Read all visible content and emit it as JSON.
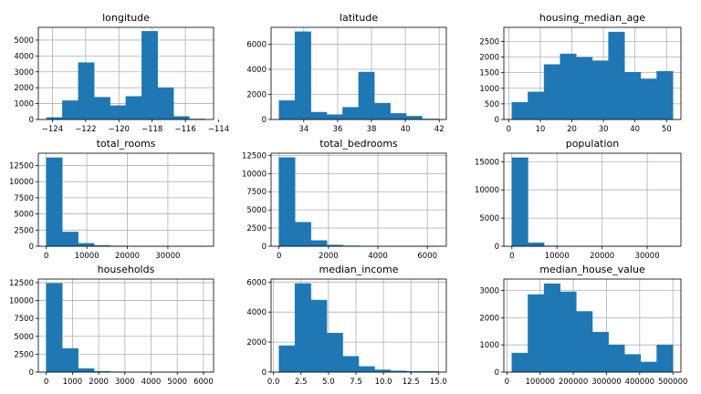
{
  "colors": {
    "bar": "#1f77b4",
    "grid": "#b0b0b0",
    "axis": "#000000"
  },
  "chart_data": [
    {
      "type": "bar",
      "title": "longitude",
      "grid": true,
      "bin_edges": [
        -124.35,
        -123.4,
        -122.44,
        -121.49,
        -120.53,
        -119.58,
        -118.62,
        -117.67,
        -116.71,
        -115.76,
        -114.8
      ],
      "values": [
        120,
        1180,
        3580,
        1400,
        870,
        1450,
        5550,
        2000,
        190,
        30
      ],
      "xlim": [
        -124.85,
        -114.3
      ],
      "ylim": [
        0,
        5800
      ],
      "xticks": [
        -124,
        -122,
        -120,
        -118,
        -116,
        -114
      ],
      "xtick_labels": [
        "−124",
        "−122",
        "−120",
        "−118",
        "−116",
        "−114"
      ],
      "yticks": [
        0,
        1000,
        2000,
        3000,
        4000,
        5000
      ],
      "ytick_labels": [
        "0",
        "1000",
        "2000",
        "3000",
        "4000",
        "5000"
      ]
    },
    {
      "type": "bar",
      "title": "latitude",
      "grid": true,
      "bin_edges": [
        32.54,
        33.48,
        34.42,
        35.36,
        36.3,
        37.24,
        38.17,
        39.11,
        40.05,
        40.99,
        41.95
      ],
      "values": [
        1500,
        7000,
        580,
        380,
        970,
        3780,
        1300,
        480,
        260,
        40
      ],
      "xlim": [
        32.07,
        42.42
      ],
      "ylim": [
        0,
        7350
      ],
      "xticks": [
        34,
        36,
        38,
        40,
        42
      ],
      "xtick_labels": [
        "34",
        "36",
        "38",
        "40",
        "42"
      ],
      "yticks": [
        0,
        2000,
        4000,
        6000
      ],
      "ytick_labels": [
        "0",
        "2000",
        "4000",
        "6000"
      ]
    },
    {
      "type": "bar",
      "title": "housing_median_age",
      "grid": true,
      "bin_edges": [
        1,
        6.1,
        11.2,
        16.3,
        21.4,
        26.5,
        31.6,
        36.7,
        41.8,
        46.9,
        52
      ],
      "values": [
        550,
        880,
        1760,
        2100,
        1990,
        1880,
        2800,
        1510,
        1300,
        1540
      ],
      "xlim": [
        -1.55,
        54.55
      ],
      "ylim": [
        0,
        2950
      ],
      "xticks": [
        0,
        10,
        20,
        30,
        40,
        50
      ],
      "xtick_labels": [
        "0",
        "10",
        "20",
        "30",
        "40",
        "50"
      ],
      "yticks": [
        0,
        500,
        1000,
        1500,
        2000,
        2500
      ],
      "ytick_labels": [
        "0",
        "500",
        "1000",
        "1500",
        "2000",
        "2500"
      ]
    },
    {
      "type": "bar",
      "title": "total_rooms",
      "grid": true,
      "bin_edges": [
        2,
        3934,
        7866,
        11798,
        15730,
        19662,
        23594,
        27526,
        31458,
        35390,
        39320
      ],
      "values": [
        13700,
        2200,
        450,
        130,
        50,
        20,
        10,
        5,
        3,
        2
      ],
      "xlim": [
        -1964,
        41286
      ],
      "ylim": [
        0,
        14400
      ],
      "xticks": [
        0,
        10000,
        20000,
        30000
      ],
      "xtick_labels": [
        "0",
        "10000",
        "20000",
        "30000"
      ],
      "yticks": [
        0,
        2500,
        5000,
        7500,
        10000,
        12500
      ],
      "ytick_labels": [
        "0",
        "2500",
        "5000",
        "7500",
        "10000",
        "12500"
      ]
    },
    {
      "type": "bar",
      "title": "total_bedrooms",
      "grid": true,
      "bin_edges": [
        1,
        645.5,
        1290,
        1934.5,
        2579,
        3223.5,
        3868,
        4512.5,
        5157,
        5801.5,
        6446
      ],
      "values": [
        12200,
        3300,
        780,
        170,
        60,
        25,
        10,
        5,
        3,
        2
      ],
      "xlim": [
        -321,
        6768
      ],
      "ylim": [
        0,
        12800
      ],
      "xticks": [
        0,
        2000,
        4000,
        6000
      ],
      "xtick_labels": [
        "0",
        "2000",
        "4000",
        "6000"
      ],
      "yticks": [
        0,
        2500,
        5000,
        7500,
        10000,
        12500
      ],
      "ytick_labels": [
        "0",
        "2500",
        "5000",
        "7500",
        "10000",
        "12500"
      ]
    },
    {
      "type": "bar",
      "title": "population",
      "grid": true,
      "bin_edges": [
        3,
        3571,
        7139,
        10707,
        14275,
        17843,
        21411,
        24979,
        28547,
        32115,
        35682
      ],
      "values": [
        15700,
        600,
        60,
        15,
        5,
        3,
        2,
        1,
        1,
        1
      ],
      "xlim": [
        -1781,
        37466
      ],
      "ylim": [
        0,
        16500
      ],
      "xticks": [
        0,
        10000,
        20000,
        30000
      ],
      "xtick_labels": [
        "0",
        "10000",
        "20000",
        "30000"
      ],
      "yticks": [
        0,
        5000,
        10000,
        15000
      ],
      "ytick_labels": [
        "0",
        "5000",
        "10000",
        "15000"
      ]
    },
    {
      "type": "bar",
      "title": "households",
      "grid": true,
      "bin_edges": [
        1,
        609.4,
        1217.8,
        1826.2,
        2434.6,
        3043,
        3651.4,
        4259.8,
        4868.2,
        5476.6,
        6082
      ],
      "values": [
        12400,
        3300,
        500,
        110,
        40,
        15,
        8,
        5,
        3,
        2
      ],
      "xlim": [
        -303,
        6386
      ],
      "ylim": [
        0,
        13000
      ],
      "xticks": [
        0,
        1000,
        2000,
        3000,
        4000,
        5000,
        6000
      ],
      "xtick_labels": [
        "0",
        "1000",
        "2000",
        "3000",
        "4000",
        "5000",
        "6000"
      ],
      "yticks": [
        0,
        2500,
        5000,
        7500,
        10000,
        12500
      ],
      "ytick_labels": [
        "0",
        "2500",
        "5000",
        "7500",
        "10000",
        "12500"
      ]
    },
    {
      "type": "bar",
      "title": "median_income",
      "grid": true,
      "bin_edges": [
        0.5,
        1.95,
        3.4,
        4.85,
        6.3,
        7.75,
        9.2,
        10.65,
        12.1,
        13.55,
        15
      ],
      "values": [
        1760,
        5900,
        4800,
        2600,
        1050,
        370,
        150,
        80,
        40,
        50
      ],
      "xlim": [
        -0.22,
        15.72
      ],
      "ylim": [
        0,
        6200
      ],
      "xticks": [
        0,
        2.5,
        5,
        7.5,
        10,
        12.5,
        15
      ],
      "xtick_labels": [
        "0.0",
        "2.5",
        "5.0",
        "7.5",
        "10.0",
        "12.5",
        "15.0"
      ],
      "yticks": [
        0,
        2000,
        4000,
        6000
      ],
      "ytick_labels": [
        "0",
        "2000",
        "4000",
        "6000"
      ]
    },
    {
      "type": "bar",
      "title": "median_house_value",
      "grid": true,
      "bin_edges": [
        15000,
        63500,
        112000,
        160500,
        209000,
        257500,
        306000,
        354500,
        403000,
        451500,
        500001
      ],
      "values": [
        700,
        2850,
        3250,
        2950,
        2230,
        1470,
        1000,
        650,
        370,
        1000
      ],
      "xlim": [
        -9250,
        524251
      ],
      "ylim": [
        0,
        3420
      ],
      "xticks": [
        0,
        100000,
        200000,
        300000,
        400000,
        500000
      ],
      "xtick_labels": [
        "0",
        "100000",
        "200000",
        "300000",
        "400000",
        "500000"
      ],
      "yticks": [
        0,
        1000,
        2000,
        3000
      ],
      "ytick_labels": [
        "0",
        "1000",
        "2000",
        "3000"
      ]
    }
  ]
}
